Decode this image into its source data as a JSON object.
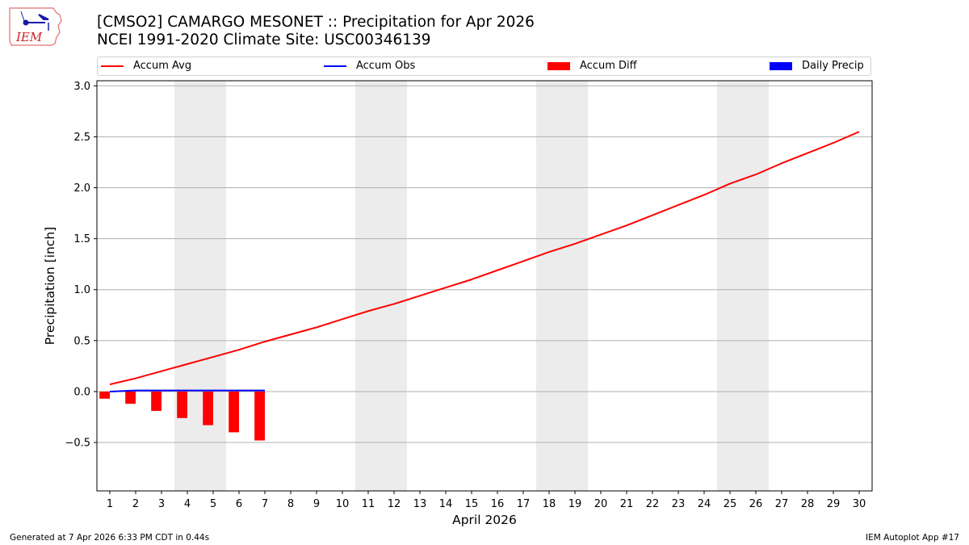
{
  "header": {
    "logo_text": "IEM",
    "title_line1": "[CMSO2] CAMARGO MESONET :: Precipitation for Apr 2026",
    "title_line2": "NCEI 1991-2020 Climate Site: USC00346139"
  },
  "legend": [
    {
      "label": "Accum Avg",
      "kind": "line",
      "color": "#ff0000"
    },
    {
      "label": "Accum Obs",
      "kind": "line",
      "color": "#0000ff"
    },
    {
      "label": "Accum Diff",
      "kind": "patch",
      "color": "#ff0000"
    },
    {
      "label": "Daily Precip",
      "kind": "patch",
      "color": "#0000ff"
    }
  ],
  "footer": {
    "left": "Generated at 7 Apr 2026 6:33 PM CDT in 0.44s",
    "right": "IEM Autoplot App #17"
  },
  "colors": {
    "avg": "#ff0000",
    "obs": "#0000ff",
    "diff": "#ff0000",
    "weekend": "#ececec",
    "grid": "#b0b0b0"
  },
  "chart_data": {
    "type": "line",
    "title": "[CMSO2] CAMARGO MESONET :: Precipitation for Apr 2026",
    "subtitle": "NCEI 1991-2020 Climate Site: USC00346139",
    "xlabel": "April 2026",
    "ylabel": "Precipitation [inch]",
    "x": [
      1,
      2,
      3,
      4,
      5,
      6,
      7,
      8,
      9,
      10,
      11,
      12,
      13,
      14,
      15,
      16,
      17,
      18,
      19,
      20,
      21,
      22,
      23,
      24,
      25,
      26,
      27,
      28,
      29,
      30
    ],
    "xlim": [
      0.5,
      30.5
    ],
    "ylim": [
      -0.975,
      3.05
    ],
    "yticks": [
      -0.5,
      0.0,
      0.5,
      1.0,
      1.5,
      2.0,
      2.5,
      3.0
    ],
    "ytick_labels": [
      "−0.5",
      "0.0",
      "0.5",
      "1.0",
      "1.5",
      "2.0",
      "2.5",
      "3.0"
    ],
    "grid": "y",
    "legend_position": "top",
    "weekend_shading": [
      [
        3.5,
        5.5
      ],
      [
        10.5,
        12.5
      ],
      [
        17.5,
        19.5
      ],
      [
        24.5,
        26.5
      ]
    ],
    "series": [
      {
        "name": "Accum Avg",
        "type": "line",
        "color": "#ff0000",
        "x": [
          1,
          2,
          3,
          4,
          5,
          6,
          7,
          8,
          9,
          10,
          11,
          12,
          13,
          14,
          15,
          16,
          17,
          18,
          19,
          20,
          21,
          22,
          23,
          24,
          25,
          26,
          27,
          28,
          29,
          30
        ],
        "values": [
          0.07,
          0.13,
          0.2,
          0.27,
          0.34,
          0.41,
          0.49,
          0.56,
          0.63,
          0.71,
          0.79,
          0.86,
          0.94,
          1.02,
          1.1,
          1.19,
          1.28,
          1.37,
          1.45,
          1.54,
          1.63,
          1.73,
          1.83,
          1.93,
          2.04,
          2.13,
          2.24,
          2.34,
          2.44,
          2.55
        ]
      },
      {
        "name": "Accum Obs",
        "type": "line",
        "color": "#0000ff",
        "x": [
          1,
          2,
          3,
          4,
          5,
          6,
          7
        ],
        "values": [
          0.0,
          0.01,
          0.01,
          0.01,
          0.01,
          0.01,
          0.01
        ]
      },
      {
        "name": "Accum Diff",
        "type": "bar",
        "color": "#ff0000",
        "x": [
          1,
          2,
          3,
          4,
          5,
          6,
          7
        ],
        "values": [
          -0.07,
          -0.12,
          -0.19,
          -0.26,
          -0.33,
          -0.4,
          -0.48
        ]
      },
      {
        "name": "Daily Precip",
        "type": "bar",
        "color": "#0000ff",
        "x": [
          1,
          2,
          3,
          4,
          5,
          6,
          7
        ],
        "values": [
          0,
          0,
          0,
          0,
          0,
          0,
          0
        ]
      }
    ]
  }
}
